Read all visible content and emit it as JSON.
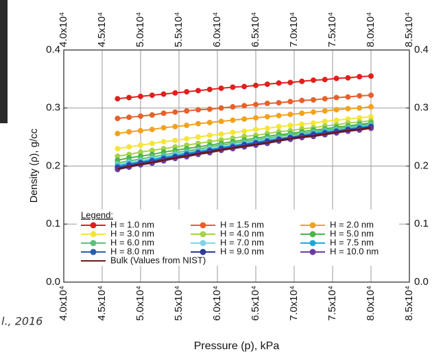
{
  "chart_data": {
    "type": "line",
    "x_label": "Pressure (p), kPa",
    "y_label": "Density (ρ), g/cc",
    "legend_title": "Legend:",
    "annotation": "l., 2016",
    "grid": true,
    "xlim": [
      40000,
      85000
    ],
    "ylim": [
      0,
      0.4
    ],
    "xticks": [
      {
        "value": 40000,
        "label": "4.0x10⁴"
      },
      {
        "value": 45000,
        "label": "4.5x10⁴"
      },
      {
        "value": 50000,
        "label": "5.0x10⁴"
      },
      {
        "value": 55000,
        "label": "5.5x10⁴"
      },
      {
        "value": 60000,
        "label": "6.0x10⁴"
      },
      {
        "value": 65000,
        "label": "6.5x10⁴"
      },
      {
        "value": 70000,
        "label": "7.0x10⁴"
      },
      {
        "value": 75000,
        "label": "7.5x10⁴"
      },
      {
        "value": 80000,
        "label": "8.0x10⁴"
      },
      {
        "value": 85000,
        "label": "8.5x10⁴"
      }
    ],
    "yticks": [
      {
        "value": 0,
        "label": "0.0"
      },
      0.1,
      0.2,
      0.3,
      0.4
    ],
    "x": [
      47000,
      48500,
      50000,
      51500,
      53000,
      54500,
      56000,
      57500,
      59000,
      60500,
      62000,
      63500,
      65000,
      66500,
      68000,
      69500,
      71000,
      72500,
      74000,
      75500,
      77000,
      78500,
      80000
    ],
    "series": [
      {
        "name": "H = 1.0 nm",
        "color": "#e0201c",
        "values": [
          0.316,
          0.318,
          0.32,
          0.322,
          0.324,
          0.326,
          0.328,
          0.33,
          0.332,
          0.334,
          0.336,
          0.337,
          0.339,
          0.341,
          0.343,
          0.344,
          0.346,
          0.348,
          0.349,
          0.351,
          0.352,
          0.354,
          0.355
        ]
      },
      {
        "name": "H = 1.5 nm",
        "color": "#e8602a",
        "values": [
          0.282,
          0.284,
          0.286,
          0.288,
          0.291,
          0.293,
          0.295,
          0.297,
          0.298,
          0.3,
          0.302,
          0.304,
          0.306,
          0.308,
          0.309,
          0.311,
          0.313,
          0.314,
          0.316,
          0.318,
          0.319,
          0.321,
          0.322
        ]
      },
      {
        "name": "H = 2.0 nm",
        "color": "#f2a21d",
        "values": [
          0.256,
          0.259,
          0.261,
          0.263,
          0.266,
          0.268,
          0.27,
          0.273,
          0.275,
          0.277,
          0.279,
          0.281,
          0.283,
          0.285,
          0.287,
          0.289,
          0.291,
          0.293,
          0.295,
          0.297,
          0.299,
          0.3,
          0.302
        ]
      },
      {
        "name": "H = 3.0 nm",
        "color": "#f5e43a",
        "values": [
          0.23,
          0.233,
          0.236,
          0.239,
          0.242,
          0.244,
          0.247,
          0.25,
          0.253,
          0.255,
          0.258,
          0.26,
          0.263,
          0.265,
          0.268,
          0.27,
          0.272,
          0.274,
          0.277,
          0.279,
          0.281,
          0.283,
          0.285
        ]
      },
      {
        "name": "H = 4.0 nm",
        "color": "#a6d24a",
        "values": [
          0.217,
          0.22,
          0.224,
          0.227,
          0.23,
          0.233,
          0.236,
          0.239,
          0.242,
          0.245,
          0.248,
          0.251,
          0.253,
          0.256,
          0.259,
          0.261,
          0.264,
          0.266,
          0.269,
          0.271,
          0.274,
          0.276,
          0.278
        ]
      },
      {
        "name": "H = 5.0 nm",
        "color": "#48b648",
        "values": [
          0.21,
          0.214,
          0.217,
          0.22,
          0.224,
          0.227,
          0.23,
          0.233,
          0.236,
          0.239,
          0.242,
          0.245,
          0.248,
          0.251,
          0.254,
          0.256,
          0.259,
          0.262,
          0.264,
          0.267,
          0.269,
          0.272,
          0.274
        ]
      },
      {
        "name": "H = 6.0 nm",
        "color": "#5cc07a",
        "values": [
          0.205,
          0.209,
          0.212,
          0.216,
          0.219,
          0.223,
          0.226,
          0.229,
          0.233,
          0.236,
          0.239,
          0.242,
          0.245,
          0.248,
          0.251,
          0.254,
          0.256,
          0.259,
          0.262,
          0.264,
          0.267,
          0.27,
          0.272
        ]
      },
      {
        "name": "H = 7.0 nm",
        "color": "#80d2e6",
        "values": [
          0.202,
          0.206,
          0.209,
          0.213,
          0.216,
          0.22,
          0.223,
          0.227,
          0.23,
          0.233,
          0.236,
          0.239,
          0.243,
          0.246,
          0.248,
          0.251,
          0.254,
          0.257,
          0.26,
          0.262,
          0.265,
          0.268,
          0.27
        ]
      },
      {
        "name": "H = 7.5 nm",
        "color": "#1fa6d8",
        "values": [
          0.2,
          0.204,
          0.207,
          0.211,
          0.215,
          0.218,
          0.222,
          0.225,
          0.228,
          0.232,
          0.235,
          0.238,
          0.241,
          0.244,
          0.247,
          0.25,
          0.253,
          0.256,
          0.259,
          0.261,
          0.264,
          0.267,
          0.269
        ]
      },
      {
        "name": "H = 8.0 nm",
        "color": "#2a5cb0",
        "values": [
          0.198,
          0.202,
          0.206,
          0.209,
          0.213,
          0.216,
          0.22,
          0.223,
          0.227,
          0.23,
          0.233,
          0.237,
          0.24,
          0.243,
          0.246,
          0.249,
          0.252,
          0.255,
          0.257,
          0.26,
          0.263,
          0.265,
          0.268
        ]
      },
      {
        "name": "H = 9.0 nm",
        "color": "#2e3a98",
        "values": [
          0.196,
          0.2,
          0.204,
          0.207,
          0.211,
          0.215,
          0.218,
          0.222,
          0.225,
          0.229,
          0.232,
          0.235,
          0.238,
          0.241,
          0.245,
          0.248,
          0.251,
          0.253,
          0.256,
          0.259,
          0.262,
          0.264,
          0.267
        ]
      },
      {
        "name": "H = 10.0 nm",
        "color": "#6a3ca0",
        "values": [
          0.194,
          0.198,
          0.202,
          0.205,
          0.209,
          0.213,
          0.216,
          0.22,
          0.223,
          0.227,
          0.23,
          0.233,
          0.236,
          0.239,
          0.243,
          0.246,
          0.249,
          0.251,
          0.254,
          0.257,
          0.26,
          0.262,
          0.265
        ]
      },
      {
        "name": "Bulk (Values from NIST)",
        "color": "#6b1818",
        "markers": false,
        "values": [
          0.195,
          0.199,
          0.203,
          0.206,
          0.21,
          0.214,
          0.217,
          0.221,
          0.224,
          0.228,
          0.231,
          0.234,
          0.237,
          0.24,
          0.244,
          0.247,
          0.25,
          0.252,
          0.255,
          0.258,
          0.261,
          0.263,
          0.266
        ]
      }
    ]
  }
}
